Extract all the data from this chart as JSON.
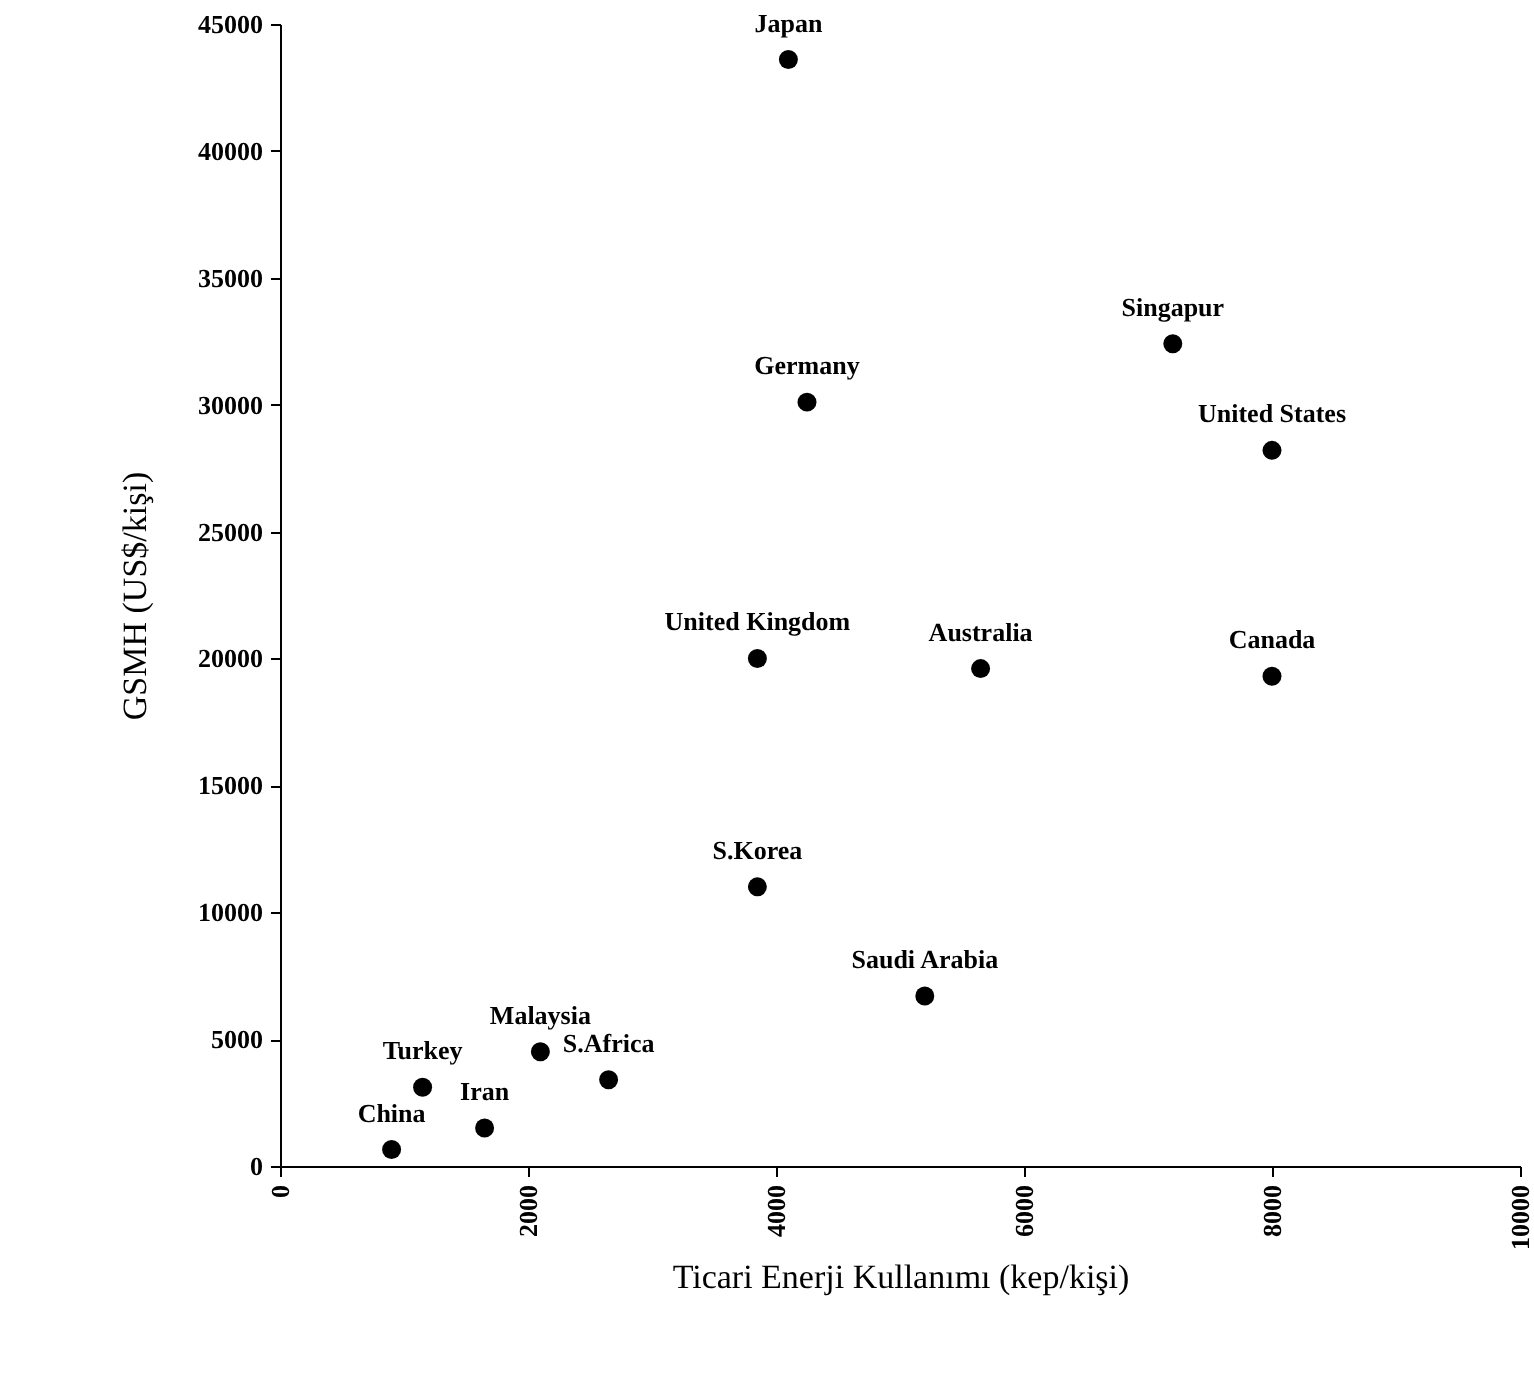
{
  "chart_data": {
    "type": "scatter",
    "xlabel": "Ticari Enerji Kullanımı (kep/kişi)",
    "ylabel": "GSMH (US$/kişi)",
    "series": [
      {
        "color": "#000000",
        "x": [
          4100,
          4250,
          7200,
          8000,
          3850,
          5650,
          8000,
          3850,
          5200,
          2100,
          2650,
          1150,
          1650,
          900
        ],
        "values": [
          43600,
          30100,
          32400,
          28200,
          20000,
          19600,
          19300,
          11000,
          6700,
          4500,
          3400,
          3100,
          1500,
          650
        ]
      }
    ],
    "annotations": [
      {
        "text": "Japan",
        "x": 4100,
        "y": 43600
      },
      {
        "text": "Germany",
        "x": 4250,
        "y": 30100
      },
      {
        "text": "Singapur",
        "x": 7200,
        "y": 32400
      },
      {
        "text": "United States",
        "x": 8000,
        "y": 28200
      },
      {
        "text": "United Kingdom",
        "x": 3850,
        "y": 20000
      },
      {
        "text": "Australia",
        "x": 5650,
        "y": 19600
      },
      {
        "text": "Canada",
        "x": 8000,
        "y": 19300
      },
      {
        "text": "S.Korea",
        "x": 3850,
        "y": 11000
      },
      {
        "text": "Saudi Arabia",
        "x": 5200,
        "y": 6700
      },
      {
        "text": "Malaysia",
        "x": 2100,
        "y": 4500
      },
      {
        "text": "S.Africa",
        "x": 2650,
        "y": 3400
      },
      {
        "text": "Turkey",
        "x": 1150,
        "y": 3100
      },
      {
        "text": "Iran",
        "x": 1650,
        "y": 1500
      },
      {
        "text": "China",
        "x": 900,
        "y": 650
      }
    ],
    "xlim": [
      0,
      10000
    ],
    "xticks": [
      0,
      2000,
      4000,
      6000,
      8000,
      10000
    ],
    "ylim": [
      0,
      45000
    ],
    "yticks": [
      0,
      5000,
      10000,
      15000,
      20000,
      25000,
      30000,
      35000,
      40000,
      45000
    ],
    "grid": false,
    "marker": "circle"
  }
}
